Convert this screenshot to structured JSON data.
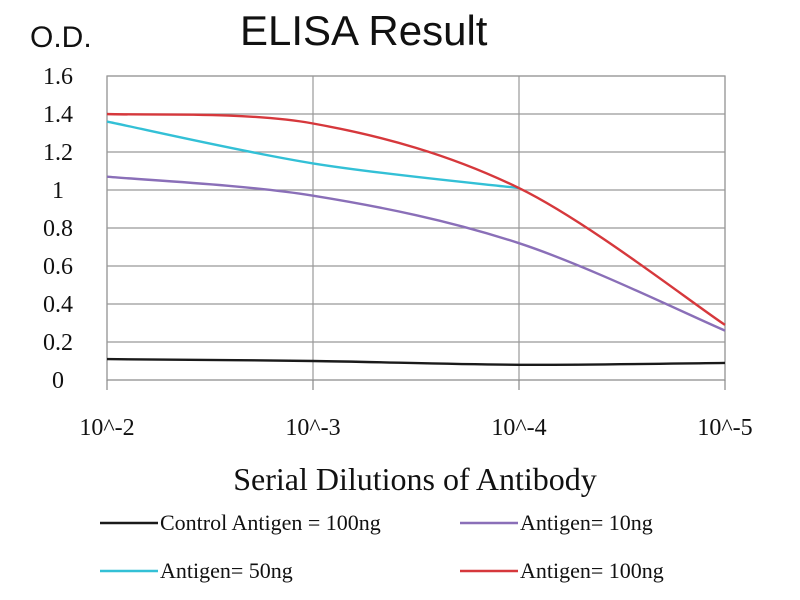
{
  "chart_data": {
    "type": "line",
    "title": "ELISA Result",
    "ylabel": "O.D.",
    "xlabel": "Serial Dilutions of Antibody",
    "x": [
      "10^-2",
      "10^-3",
      "10^-4",
      "10^-5"
    ],
    "ylim": [
      0,
      1.6
    ],
    "yticks": [
      "0",
      "0.2",
      "0.4",
      "0.6",
      "0.8",
      "1",
      "1.2",
      "1.4",
      "1.6"
    ],
    "grid": true,
    "legend_position": "bottom",
    "series": [
      {
        "name": "Control Antigen = 100ng",
        "color": "#1a1a1a",
        "values": [
          0.11,
          0.1,
          0.08,
          0.09
        ]
      },
      {
        "name": "Antigen= 10ng",
        "color": "#8a6fb8",
        "values": [
          1.07,
          0.97,
          0.72,
          0.26
        ]
      },
      {
        "name": "Antigen= 50ng",
        "color": "#33c0d6",
        "values": [
          1.36,
          1.14,
          1.01,
          null
        ]
      },
      {
        "name": "Antigen= 100ng",
        "color": "#d6383c",
        "values": [
          1.4,
          1.35,
          1.01,
          0.29
        ]
      }
    ]
  }
}
